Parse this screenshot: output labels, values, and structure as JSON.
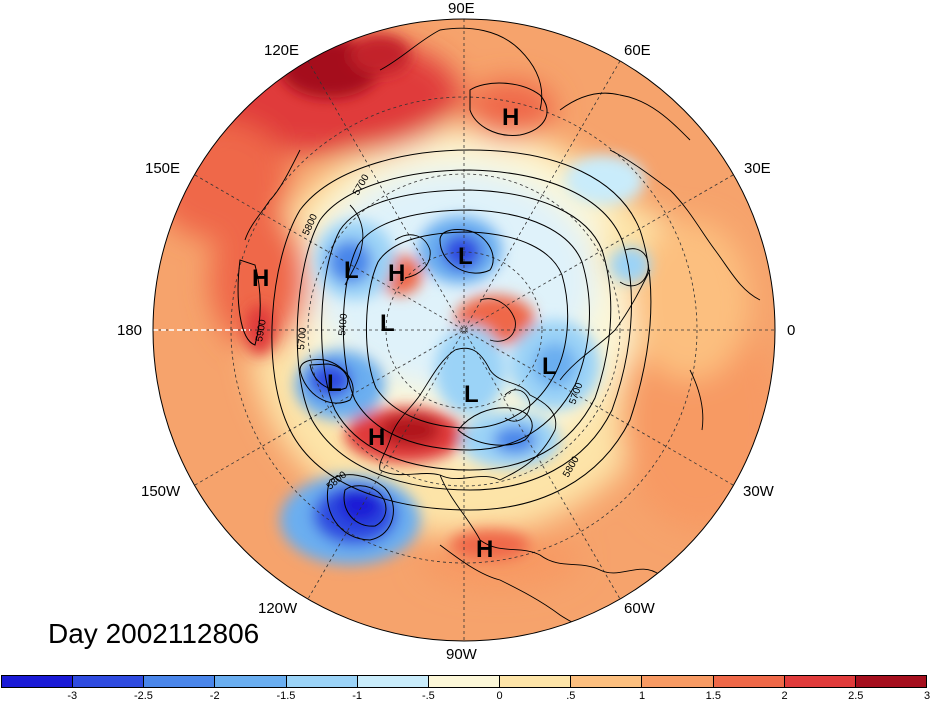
{
  "title": "Day 2002112806",
  "longitude_labels": {
    "top": "90E",
    "upper_left": "120E",
    "upper_right": "60E",
    "left_upper": "150E",
    "right_upper": "30E",
    "left": "180",
    "right": "0",
    "left_lower": "150W",
    "right_lower": "30W",
    "lower_left": "120W",
    "lower_right": "60W",
    "bottom": "90W"
  },
  "contour_labels": [
    "5700",
    "5800",
    "5900",
    "5700",
    "5400",
    "5800",
    "5700",
    "5800"
  ],
  "pressure_systems": [
    {
      "type": "H",
      "label": "H"
    },
    {
      "type": "H",
      "label": "H"
    },
    {
      "type": "H",
      "label": "H"
    },
    {
      "type": "H",
      "label": "H"
    },
    {
      "type": "H",
      "label": "H"
    },
    {
      "type": "L",
      "label": "L"
    },
    {
      "type": "L",
      "label": "L"
    },
    {
      "type": "L",
      "label": "L"
    },
    {
      "type": "L",
      "label": "L"
    },
    {
      "type": "L",
      "label": "L"
    },
    {
      "type": "L",
      "label": "L"
    }
  ],
  "colorbar": {
    "colors": [
      "#1a1ad6",
      "#2f4be0",
      "#4a86ea",
      "#6aaef0",
      "#9bd3f7",
      "#c9ecfb",
      "#fcf7d8",
      "#fde4a8",
      "#fcbf7f",
      "#f79a63",
      "#ef6848",
      "#e03b3b",
      "#a50f1e"
    ],
    "ticks": [
      "-3",
      "-2.5",
      "-2",
      "-1.5",
      "-1",
      "-.5",
      "0",
      ".5",
      "1",
      "1.5",
      "2",
      "2.5",
      "3"
    ]
  }
}
